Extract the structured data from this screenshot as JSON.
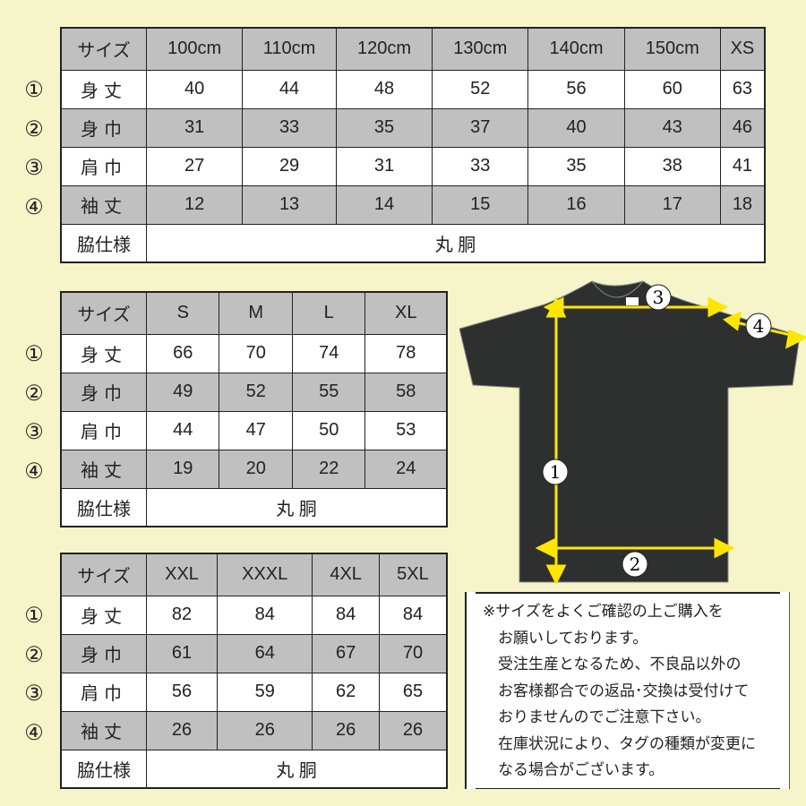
{
  "tables": [
    {
      "header": [
        "サイズ",
        "100cm",
        "110cm",
        "120cm",
        "130cm",
        "140cm",
        "150cm",
        "XS"
      ],
      "rows": [
        {
          "num": "①",
          "label": "身丈",
          "values": [
            "40",
            "44",
            "48",
            "52",
            "56",
            "60",
            "63"
          ]
        },
        {
          "num": "②",
          "label": "身巾",
          "values": [
            "31",
            "33",
            "35",
            "37",
            "40",
            "43",
            "46"
          ]
        },
        {
          "num": "③",
          "label": "肩巾",
          "values": [
            "27",
            "29",
            "31",
            "33",
            "35",
            "38",
            "41"
          ]
        },
        {
          "num": "④",
          "label": "袖丈",
          "values": [
            "12",
            "13",
            "14",
            "15",
            "16",
            "17",
            "18"
          ]
        }
      ],
      "side_label": "脇仕様",
      "side_value": "丸 胴"
    },
    {
      "header": [
        "サイズ",
        "S",
        "M",
        "L",
        "XL"
      ],
      "rows": [
        {
          "num": "①",
          "label": "身丈",
          "values": [
            "66",
            "70",
            "74",
            "78"
          ]
        },
        {
          "num": "②",
          "label": "身巾",
          "values": [
            "49",
            "52",
            "55",
            "58"
          ]
        },
        {
          "num": "③",
          "label": "肩巾",
          "values": [
            "44",
            "47",
            "50",
            "53"
          ]
        },
        {
          "num": "④",
          "label": "袖丈",
          "values": [
            "19",
            "20",
            "22",
            "24"
          ]
        }
      ],
      "side_label": "脇仕様",
      "side_value": "丸 胴"
    },
    {
      "header": [
        "サイズ",
        "XXL",
        "XXXL",
        "4XL",
        "5XL"
      ],
      "rows": [
        {
          "num": "①",
          "label": "身丈",
          "values": [
            "82",
            "84",
            "84",
            "84"
          ]
        },
        {
          "num": "②",
          "label": "身巾",
          "values": [
            "61",
            "64",
            "67",
            "70"
          ]
        },
        {
          "num": "③",
          "label": "肩巾",
          "values": [
            "56",
            "59",
            "62",
            "65"
          ]
        },
        {
          "num": "④",
          "label": "袖丈",
          "values": [
            "26",
            "26",
            "26",
            "26"
          ]
        }
      ],
      "side_label": "脇仕様",
      "side_value": "丸 胴"
    }
  ],
  "diagram": {
    "markers": [
      "1",
      "2",
      "3",
      "4"
    ],
    "shirt_color": "#2e302f",
    "arrow_color": "#ffe600"
  },
  "notes": "※サイズをよくご確認の上ご購入を\n　お願いしております。\n　受注生産となるため、不良品以外の\n　お客様都合での返品･交換は受付けて\n　おりませんのでご注意下さい。\n　在庫状況により、タグの種類が変更に\n　なる場合がございます。",
  "colors": {
    "background": "#f5f5c9",
    "gray_row": "#c0c0c0"
  }
}
